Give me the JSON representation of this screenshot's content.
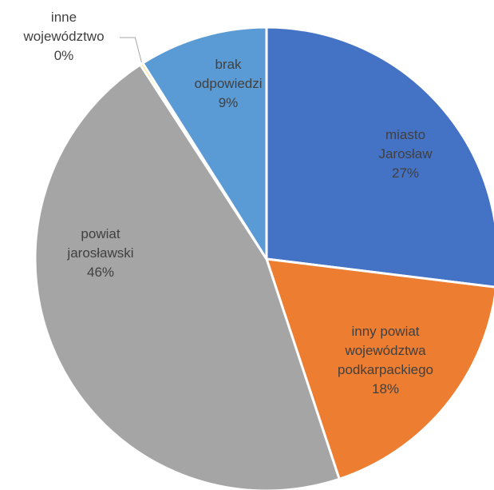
{
  "chart_data": {
    "type": "pie",
    "start_angle_deg": 0,
    "direction": "clockwise",
    "slices": [
      {
        "name": "miasto Jarosław",
        "label_lines": [
          "miasto",
          "Jarosław",
          "27%"
        ],
        "value": 27,
        "color": "#4472C4"
      },
      {
        "name": "inny powiat województwa podkarpackiego",
        "label_lines": [
          "inny powiat",
          "województwa",
          "podkarpackiego",
          "18%"
        ],
        "value": 18,
        "color": "#ED7D31"
      },
      {
        "name": "powiat jarosławski",
        "label_lines": [
          "powiat",
          "jarosławski",
          "46%"
        ],
        "value": 46,
        "color": "#A5A5A5"
      },
      {
        "name": "inne województwo",
        "label_lines": [
          "inne",
          "województwo",
          "0%"
        ],
        "value": 0.2,
        "color": "#FFC000"
      },
      {
        "name": "brak odpowiedzi",
        "label_lines": [
          "brak",
          "odpowiedzi",
          "9%"
        ],
        "value": 9,
        "color": "#5B9BD5"
      }
    ]
  }
}
